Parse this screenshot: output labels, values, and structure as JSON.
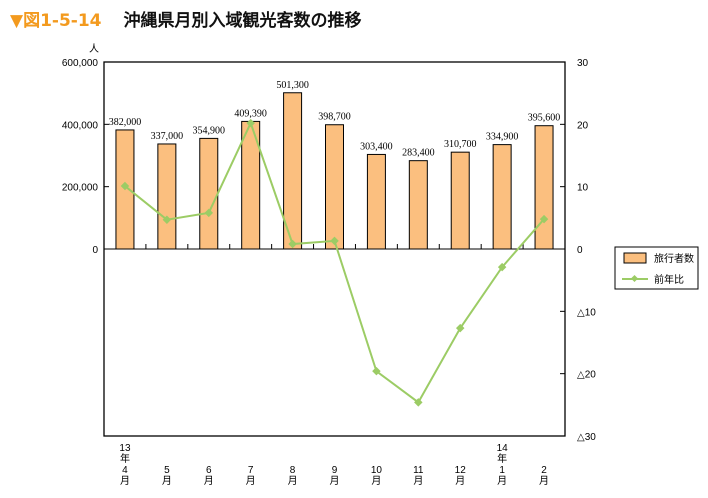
{
  "title": {
    "figure_number": "▼図1-5-14",
    "text": "沖縄県月別入域観光客数の推移"
  },
  "chart_data": {
    "type": "bar+line",
    "categories": [
      [
        "13",
        "年",
        "4",
        "月"
      ],
      [
        "5",
        "月"
      ],
      [
        "6",
        "月"
      ],
      [
        "7",
        "月"
      ],
      [
        "8",
        "月"
      ],
      [
        "9",
        "月"
      ],
      [
        "10",
        "月"
      ],
      [
        "11",
        "月"
      ],
      [
        "12",
        "月"
      ],
      [
        "14",
        "年",
        "1",
        "月"
      ],
      [
        "2",
        "月"
      ]
    ],
    "left_axis": {
      "unit_label": "人",
      "ylim": [
        0,
        600000
      ],
      "ticks": [
        "0",
        "200,000",
        "400,000",
        "600,000"
      ]
    },
    "right_axis": {
      "ylim": [
        -30,
        30
      ],
      "ticks": [
        "30",
        "20",
        "10",
        "0",
        "△10",
        "△20",
        "△30"
      ]
    },
    "series": [
      {
        "name": "旅行者数",
        "type": "bar",
        "axis": "left",
        "color": "#fbbf7f",
        "values": [
          382000,
          337000,
          354900,
          409390,
          501300,
          398700,
          303400,
          283400,
          310700,
          334900,
          395600
        ],
        "labels": [
          "382,000",
          "337,000",
          "354,900",
          "409,390",
          "501,300",
          "398,700",
          "303,400",
          "283,400",
          "310,700",
          "334,900",
          "395,600"
        ]
      },
      {
        "name": "前年比",
        "type": "line",
        "axis": "right",
        "color": "#9ccc65",
        "values": [
          10.1,
          4.7,
          5.8,
          20.2,
          0.8,
          1.3,
          -19.6,
          -24.6,
          -12.7,
          -2.9,
          4.8
        ]
      }
    ],
    "legend": "right",
    "grid": false
  }
}
